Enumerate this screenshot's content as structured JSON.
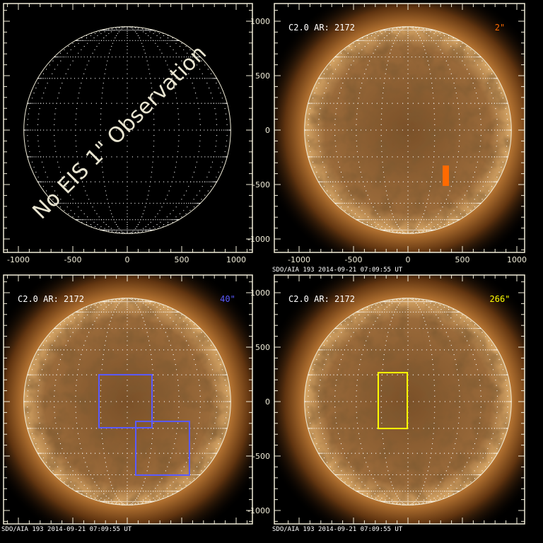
{
  "colors": {
    "axis": "#f0ecd8",
    "label": "#ffffff",
    "orange": "#ff6a00",
    "blue": "#5a5aff",
    "yellow": "#ffff00",
    "sun_core": "#9a6a3a",
    "corona": "#c88a48"
  },
  "axis": {
    "range": [
      -1150,
      1150
    ],
    "major_ticks": [
      -1000,
      -500,
      0,
      500,
      1000
    ],
    "minor_step": 100,
    "tick_labels": [
      "-1000",
      "-500",
      "0",
      "500",
      "1000"
    ]
  },
  "panels": [
    {
      "id": "top-left",
      "has_image": false,
      "overlay_text": "No EIS 1\" Observation",
      "show_x_labels": true,
      "show_y_labels": true,
      "footer": ""
    },
    {
      "id": "top-right",
      "has_image": true,
      "label": "C2.0 AR: 2172",
      "resolution": "2\"",
      "resolution_color": "#ff6a00",
      "show_x_labels": true,
      "show_y_labels": true,
      "footer": "SDO/AIA  193    2014-09-21 07:09:55 UT",
      "boxes": [
        {
          "x": [
            325,
            370
          ],
          "y": [
            -506,
            -332
          ],
          "color": "#ff6a00",
          "filled": true
        }
      ]
    },
    {
      "id": "bottom-left",
      "has_image": true,
      "label": "C2.0 AR: 2172",
      "resolution": "40\"",
      "resolution_color": "#5a5aff",
      "show_x_labels": false,
      "show_y_labels": true,
      "footer": "SDO/AIA  193    2014-09-21 07:09:55 UT",
      "boxes": [
        {
          "x": [
            -260,
            227
          ],
          "y": [
            -240,
            247
          ],
          "color": "#5a5aff",
          "filled": false
        },
        {
          "x": [
            78,
            571
          ],
          "y": [
            -675,
            -182
          ],
          "color": "#5a5aff",
          "filled": false
        }
      ]
    },
    {
      "id": "bottom-right",
      "has_image": true,
      "label": "C2.0 AR: 2172",
      "resolution": "266\"",
      "resolution_color": "#ffff00",
      "show_x_labels": false,
      "show_y_labels": true,
      "footer": "SDO/AIA  193    2014-09-21 07:09:55 UT",
      "boxes": [
        {
          "x": [
            -273,
            -6
          ],
          "y": [
            -247,
            266
          ],
          "color": "#ffff00",
          "filled": false
        }
      ]
    }
  ]
}
